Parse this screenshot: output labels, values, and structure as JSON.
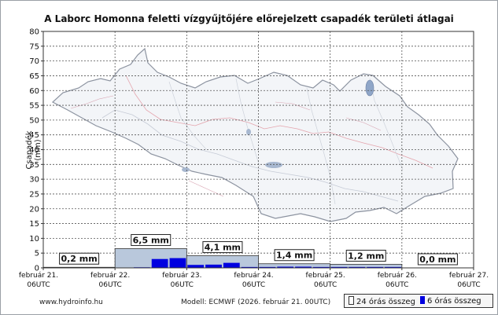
{
  "chart_data": {
    "type": "bar",
    "title": "A Laborc Homonna feletti vízgyűjtőjére előrejelzett csapadék területi átlagai",
    "ylabel": "Csapadék (mm)",
    "xlabel": "",
    "ylim": [
      0,
      80
    ],
    "y_ticks": [
      0,
      5,
      10,
      15,
      20,
      25,
      30,
      35,
      40,
      45,
      50,
      55,
      60,
      65,
      70,
      75,
      80
    ],
    "x_ticks": [
      {
        "date": "február 21.",
        "time": "06UTC"
      },
      {
        "date": "február 22.",
        "time": "06UTC"
      },
      {
        "date": "február 23.",
        "time": "06UTC"
      },
      {
        "date": "február 24.",
        "time": "06UTC"
      },
      {
        "date": "február 25.",
        "time": "06UTC"
      },
      {
        "date": "február 26.",
        "time": "06UTC"
      },
      {
        "date": "február 27.",
        "time": "06UTC"
      }
    ],
    "grid": true,
    "legend_position": "bottom-right",
    "daily_24h": {
      "name": "24 órás összeg",
      "values": [
        0.2,
        6.5,
        4.1,
        1.4,
        1.2,
        0.0
      ],
      "labels": [
        "0,2 mm",
        "6,5 mm",
        "4,1 mm",
        "1,4 mm",
        "1,2 mm",
        "0,0 mm"
      ],
      "color": "#b9c8dc"
    },
    "sixhour_6h": {
      "name": "6 órás összeg",
      "values": [
        0.0,
        0.0,
        0.1,
        0.1,
        0.0,
        0.2,
        3.0,
        3.3,
        1.0,
        1.1,
        1.7,
        0.3,
        0.3,
        0.4,
        0.4,
        0.3,
        0.3,
        0.3,
        0.3,
        0.3,
        0.0,
        0.0,
        0.0,
        0.0
      ],
      "color": "#0000e0"
    }
  },
  "footer": {
    "source": "www.hydroinfo.hu",
    "model": "Modell: ECMWF (2026. február 21. 00UTC)"
  },
  "legend": {
    "item_24h": "24 órás összeg",
    "item_6h": "6 órás összeg"
  }
}
